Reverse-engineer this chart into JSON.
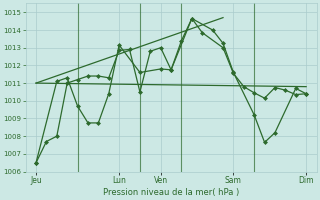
{
  "background_color": "#cce8e4",
  "grid_color": "#aacccc",
  "line_color": "#2d6a2d",
  "xlabel": "Pression niveau de la mer( hPa )",
  "ylim": [
    1006,
    1015.5
  ],
  "yticks": [
    1006,
    1007,
    1008,
    1009,
    1010,
    1011,
    1012,
    1013,
    1014,
    1015
  ],
  "xlim": [
    0,
    14
  ],
  "day_labels": [
    "Jeu",
    "Lun",
    "Ven",
    "Sam",
    "Dim"
  ],
  "day_positions": [
    0.5,
    4.5,
    6.5,
    10,
    13.5
  ],
  "vlines": [
    2.5,
    5.5,
    7.5,
    11
  ],
  "series": [
    {
      "x": [
        0.5,
        13.5
      ],
      "y": [
        1011.0,
        1010.8
      ],
      "style": "-",
      "marker": null,
      "linewidth": 0.9
    },
    {
      "x": [
        0.5,
        9.5
      ],
      "y": [
        1011.0,
        1014.7
      ],
      "style": "-",
      "marker": null,
      "linewidth": 0.9
    },
    {
      "x": [
        0.5,
        1.0,
        1.5,
        2.0,
        2.5,
        3.0,
        3.5,
        4.0,
        4.5,
        5.0,
        5.5,
        6.0,
        6.5,
        7.0,
        7.5,
        8.0,
        8.5,
        9.5,
        10.0,
        10.5,
        11.0,
        11.5,
        12.0,
        12.5,
        13.0,
        13.5
      ],
      "y": [
        1006.5,
        1007.7,
        1008.0,
        1011.0,
        1011.2,
        1011.4,
        1011.4,
        1011.3,
        1012.85,
        1012.9,
        1010.5,
        1012.8,
        1013.0,
        1011.75,
        1013.4,
        1014.65,
        1013.85,
        1013.0,
        1011.55,
        1010.8,
        1010.45,
        1010.15,
        1010.75,
        1010.6,
        1010.35,
        1010.4
      ],
      "style": "-",
      "marker": "D",
      "markersize": 2.0,
      "linewidth": 0.9
    },
    {
      "x": [
        0.5,
        1.5,
        2.0,
        2.5,
        3.0,
        3.5,
        4.0,
        4.5,
        5.5,
        6.5,
        7.0,
        8.0,
        9.0,
        9.5,
        10.0,
        11.0,
        11.5,
        12.0,
        13.0,
        13.5
      ],
      "y": [
        1006.5,
        1011.1,
        1011.3,
        1009.7,
        1008.75,
        1008.75,
        1010.4,
        1013.15,
        1011.6,
        1011.8,
        1011.75,
        1014.65,
        1014.0,
        1013.25,
        1011.6,
        1009.2,
        1007.65,
        1008.2,
        1010.7,
        1010.4
      ],
      "style": "-",
      "marker": "D",
      "markersize": 2.0,
      "linewidth": 0.9
    }
  ]
}
